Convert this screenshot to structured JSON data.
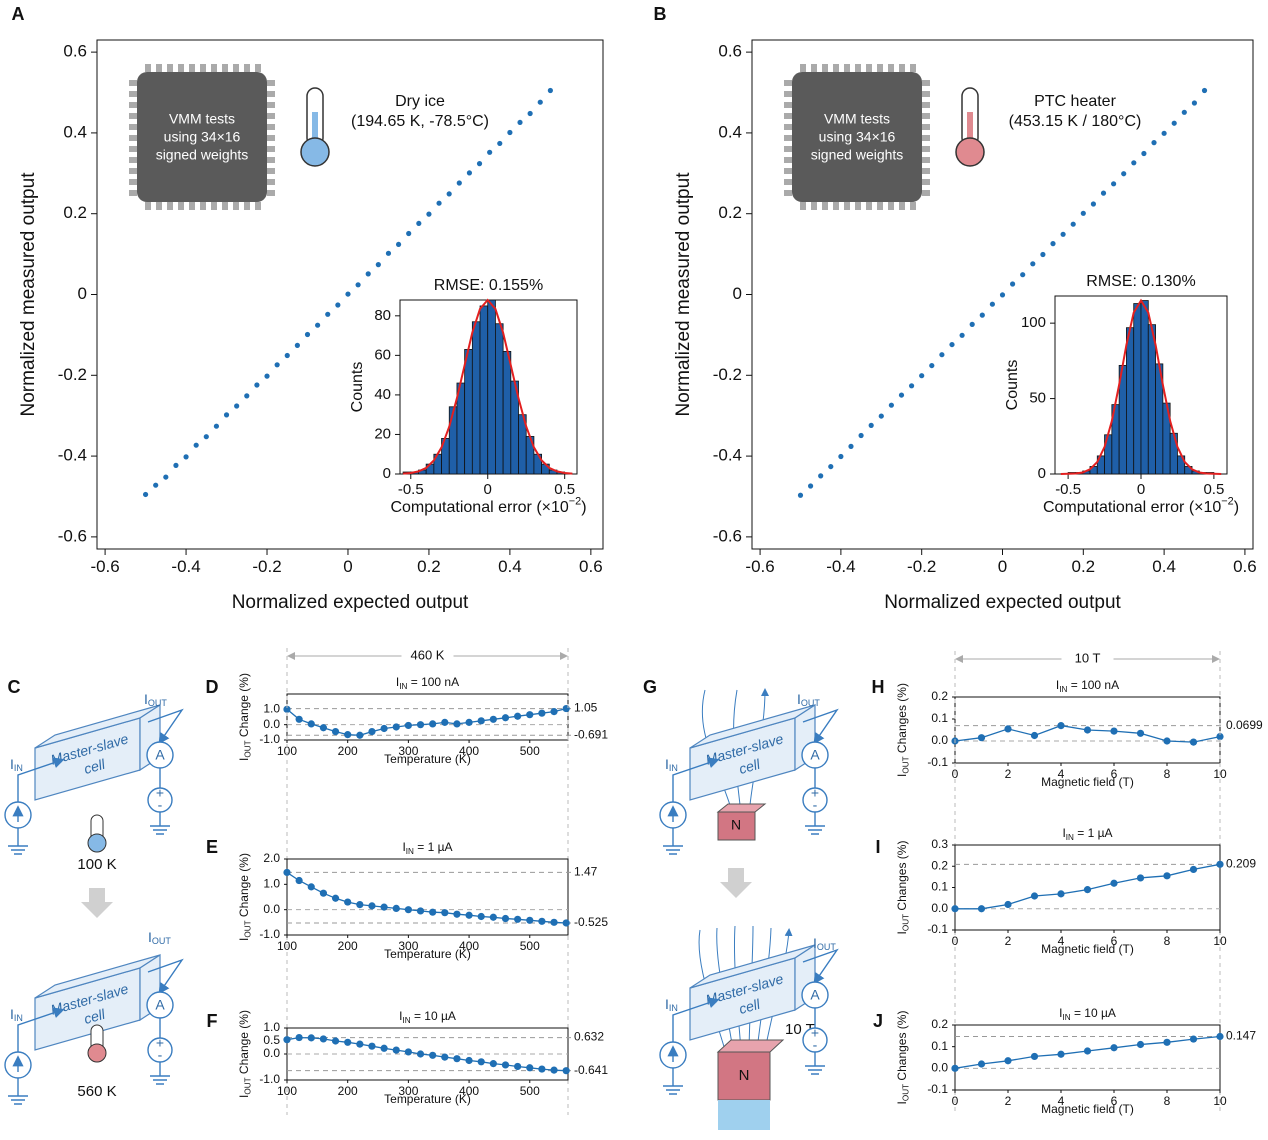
{
  "panel_labels": [
    "A",
    "B",
    "C",
    "D",
    "E",
    "F",
    "G",
    "H",
    "I",
    "J"
  ],
  "diagrams": {
    "cell_top": "Master-slave",
    "cell_bottom": "cell",
    "current_in": {
      "main": "I",
      "sub": "IN"
    },
    "current_out": {
      "main": "I",
      "sub": "OUT"
    },
    "meter": "A",
    "plus": "+",
    "minus": "-",
    "magnet": "N",
    "temps": [
      "100 K",
      "560 K"
    ],
    "field": "10 T"
  },
  "chart_data": [
    {
      "type": "scatter",
      "xlabel": "Normalized expected output",
      "ylabel": "Normalized measured output",
      "color": "#1f6fb4",
      "annotations": {
        "chip": [
          "VMM tests",
          "using 34×16",
          "signed weights"
        ],
        "condition": [
          "Dry ice",
          "(194.65 K, -78.5°C)"
        ],
        "icon_color": "#86b9e6"
      },
      "x": [
        -0.5,
        -0.475,
        -0.45,
        -0.425,
        -0.4,
        -0.375,
        -0.35,
        -0.325,
        -0.3,
        -0.275,
        -0.25,
        -0.225,
        -0.2,
        -0.175,
        -0.15,
        -0.125,
        -0.1,
        -0.075,
        -0.05,
        -0.025,
        0,
        0.025,
        0.05,
        0.075,
        0.1,
        0.125,
        0.15,
        0.175,
        0.2,
        0.225,
        0.25,
        0.275,
        0.3,
        0.325,
        0.35,
        0.375,
        0.4,
        0.425,
        0.45,
        0.475,
        0.5
      ],
      "values": [
        -0.495,
        -0.472,
        -0.452,
        -0.423,
        -0.402,
        -0.373,
        -0.352,
        -0.326,
        -0.298,
        -0.276,
        -0.251,
        -0.224,
        -0.202,
        -0.174,
        -0.151,
        -0.126,
        -0.099,
        -0.076,
        -0.049,
        -0.026,
        0.001,
        0.024,
        0.051,
        0.074,
        0.102,
        0.124,
        0.151,
        0.176,
        0.199,
        0.226,
        0.249,
        0.276,
        0.301,
        0.324,
        0.352,
        0.374,
        0.401,
        0.426,
        0.448,
        0.476,
        0.505
      ],
      "xlim": [
        -0.62,
        0.63
      ],
      "ylim": [
        -0.63,
        0.63
      ],
      "xticks": [
        -0.6,
        -0.4,
        -0.2,
        0,
        0.2,
        0.4,
        0.6
      ],
      "yticks": [
        -0.6,
        -0.4,
        -0.2,
        0,
        0.2,
        0.4,
        0.6
      ]
    },
    {
      "type": "histogram",
      "title": "RMSE: 0.155%",
      "xlabel": {
        "main": "Computational error (×10",
        "sup": "−2",
        "tail": ")"
      },
      "ylabel": "Counts",
      "color": "#1f5fa8",
      "edgecolor": "#111111",
      "bins": [
        -0.55,
        -0.5,
        -0.45,
        -0.4,
        -0.35,
        -0.3,
        -0.25,
        -0.2,
        -0.15,
        -0.1,
        -0.05,
        0,
        0.05,
        0.1,
        0.15,
        0.2,
        0.25,
        0.3,
        0.35,
        0.4,
        0.45,
        0.5
      ],
      "counts": [
        1,
        1,
        2,
        5,
        10,
        18,
        34,
        46,
        63,
        77,
        85,
        88,
        76,
        62,
        47,
        30,
        19,
        10,
        5,
        2,
        1
      ],
      "fit": {
        "color": "#e32020",
        "x": [
          -0.55,
          -0.5,
          -0.45,
          -0.4,
          -0.35,
          -0.3,
          -0.25,
          -0.2,
          -0.15,
          -0.1,
          -0.05,
          0,
          0.05,
          0.1,
          0.15,
          0.2,
          0.25,
          0.3,
          0.35,
          0.4,
          0.45,
          0.5,
          0.55
        ],
        "values": [
          0.2,
          0.5,
          1.3,
          3.1,
          6.9,
          13.5,
          24,
          38.3,
          55,
          71.5,
          83.5,
          88,
          83.5,
          71.5,
          55,
          38.3,
          24,
          13.5,
          6.9,
          3.1,
          1.3,
          0.5,
          0.2
        ]
      },
      "xlim": [
        -0.57,
        0.58
      ],
      "ylim": [
        0,
        88
      ],
      "xticks": [
        -0.5,
        0,
        0.5
      ],
      "yticks": [
        0,
        20,
        40,
        60,
        80
      ]
    },
    {
      "type": "scatter",
      "xlabel": "Normalized expected output",
      "ylabel": "Normalized measured output",
      "color": "#1f6fb4",
      "annotations": {
        "chip": [
          "VMM tests",
          "using 34×16",
          "signed weights"
        ],
        "condition": [
          "PTC heater",
          "(453.15 K / 180°C)"
        ],
        "icon_color": "#e08a90"
      },
      "x": [
        -0.5,
        -0.475,
        -0.45,
        -0.425,
        -0.4,
        -0.375,
        -0.35,
        -0.325,
        -0.3,
        -0.275,
        -0.25,
        -0.225,
        -0.2,
        -0.175,
        -0.15,
        -0.125,
        -0.1,
        -0.075,
        -0.05,
        -0.025,
        0,
        0.025,
        0.05,
        0.075,
        0.1,
        0.125,
        0.15,
        0.175,
        0.2,
        0.225,
        0.25,
        0.275,
        0.3,
        0.325,
        0.35,
        0.375,
        0.4,
        0.425,
        0.45,
        0.475,
        0.5
      ],
      "values": [
        -0.497,
        -0.474,
        -0.449,
        -0.426,
        -0.401,
        -0.376,
        -0.349,
        -0.324,
        -0.301,
        -0.274,
        -0.249,
        -0.226,
        -0.201,
        -0.176,
        -0.149,
        -0.124,
        -0.101,
        -0.074,
        -0.051,
        -0.024,
        -0.001,
        0.026,
        0.049,
        0.076,
        0.099,
        0.126,
        0.149,
        0.174,
        0.201,
        0.224,
        0.251,
        0.274,
        0.299,
        0.326,
        0.349,
        0.376,
        0.399,
        0.424,
        0.451,
        0.474,
        0.505
      ],
      "xlim": [
        -0.62,
        0.62
      ],
      "ylim": [
        -0.63,
        0.63
      ],
      "xticks": [
        -0.6,
        -0.4,
        -0.2,
        0,
        0.2,
        0.4,
        0.6
      ],
      "yticks": [
        -0.6,
        -0.4,
        -0.2,
        0,
        0.2,
        0.4,
        0.6
      ]
    },
    {
      "type": "histogram",
      "title": "RMSE: 0.130%",
      "xlabel": {
        "main": "Computational error (×10",
        "sup": "−2",
        "tail": ")"
      },
      "ylabel": "Counts",
      "color": "#1f5fa8",
      "edgecolor": "#111111",
      "bins": [
        -0.55,
        -0.5,
        -0.45,
        -0.4,
        -0.35,
        -0.3,
        -0.25,
        -0.2,
        -0.15,
        -0.1,
        -0.05,
        0,
        0.05,
        0.1,
        0.15,
        0.2,
        0.25,
        0.3,
        0.35,
        0.4,
        0.45,
        0.5,
        0.55
      ],
      "counts": [
        0,
        1,
        1,
        2,
        5,
        12,
        26,
        46,
        72,
        97,
        113,
        115,
        99,
        73,
        47,
        27,
        12,
        5,
        2,
        1,
        1,
        0
      ],
      "fit": {
        "color": "#e32020",
        "x": [
          -0.55,
          -0.5,
          -0.45,
          -0.4,
          -0.35,
          -0.3,
          -0.25,
          -0.2,
          -0.15,
          -0.1,
          -0.05,
          0,
          0.05,
          0.1,
          0.15,
          0.2,
          0.25,
          0.3,
          0.35,
          0.4,
          0.45,
          0.5,
          0.55
        ],
        "values": [
          0,
          0.1,
          0.3,
          1.0,
          3.1,
          8,
          18,
          35,
          59,
          85.5,
          107,
          115,
          107,
          85.5,
          59,
          35,
          18,
          8,
          3.1,
          1.0,
          0.3,
          0.1,
          0
        ]
      },
      "xlim": [
        -0.59,
        0.59
      ],
      "ylim": [
        0,
        118
      ],
      "xticks": [
        -0.5,
        0,
        0.5
      ],
      "yticks": [
        0,
        50,
        100
      ]
    },
    {
      "type": "line",
      "title": {
        "main": "I",
        "sub": "IN",
        "tail": " = 100 nA"
      },
      "xlabel": "Temperature (K)",
      "ylabel": {
        "main": "I",
        "sub": "OUT",
        "tail": " Change (%)"
      },
      "span_label": "460 K",
      "color": "#1f6fb4",
      "zero_line": true,
      "x": [
        100,
        120,
        140,
        160,
        180,
        200,
        220,
        240,
        260,
        280,
        300,
        320,
        340,
        360,
        380,
        400,
        420,
        440,
        460,
        480,
        500,
        520,
        540,
        560
      ],
      "values": [
        1.0,
        0.35,
        0.05,
        -0.2,
        -0.45,
        -0.65,
        -0.691,
        -0.45,
        -0.25,
        -0.15,
        -0.05,
        0.0,
        0.05,
        0.15,
        0.05,
        0.15,
        0.25,
        0.35,
        0.45,
        0.55,
        0.65,
        0.75,
        0.85,
        1.05
      ],
      "ref_lines": [
        1.05,
        -0.691
      ],
      "xlim": [
        100,
        563
      ],
      "ylim": [
        -1.0,
        2.0
      ],
      "xticks": [
        100,
        200,
        300,
        400,
        500
      ],
      "yticks": [
        {
          "value": -1,
          "label": "-1.0"
        },
        {
          "value": 0,
          "label": "0.0"
        },
        {
          "value": 1,
          "label": "1.0"
        }
      ]
    },
    {
      "type": "line",
      "title": {
        "main": "I",
        "sub": "IN",
        "tail": " = 1 µA"
      },
      "xlabel": "Temperature (K)",
      "ylabel": {
        "main": "I",
        "sub": "OUT",
        "tail": " Change (%)"
      },
      "color": "#1f6fb4",
      "zero_line": true,
      "x": [
        100,
        120,
        140,
        160,
        180,
        200,
        220,
        240,
        260,
        280,
        300,
        320,
        340,
        360,
        380,
        400,
        420,
        440,
        460,
        480,
        500,
        520,
        540,
        560
      ],
      "values": [
        1.47,
        1.15,
        0.9,
        0.65,
        0.45,
        0.3,
        0.2,
        0.15,
        0.1,
        0.05,
        0.0,
        -0.05,
        -0.1,
        -0.12,
        -0.18,
        -0.22,
        -0.27,
        -0.3,
        -0.35,
        -0.38,
        -0.42,
        -0.46,
        -0.5,
        -0.525
      ],
      "ref_lines": [
        1.47,
        -0.525
      ],
      "xlim": [
        100,
        563
      ],
      "ylim": [
        -1.0,
        2.0
      ],
      "xticks": [
        100,
        200,
        300,
        400,
        500
      ],
      "yticks": [
        {
          "value": -1,
          "label": "-1.0"
        },
        {
          "value": 0,
          "label": "0.0"
        },
        {
          "value": 1,
          "label": "1.0"
        },
        {
          "value": 2,
          "label": "2.0"
        }
      ]
    },
    {
      "type": "line",
      "title": {
        "main": "I",
        "sub": "IN",
        "tail": " = 10 µA"
      },
      "xlabel": "Temperature (K)",
      "ylabel": {
        "main": "I",
        "sub": "OUT",
        "tail": " Change (%)"
      },
      "color": "#1f6fb4",
      "zero_line": true,
      "x": [
        100,
        120,
        140,
        160,
        180,
        200,
        220,
        240,
        260,
        280,
        300,
        320,
        340,
        360,
        380,
        400,
        420,
        440,
        460,
        480,
        500,
        520,
        540,
        560
      ],
      "values": [
        0.55,
        0.632,
        0.62,
        0.58,
        0.5,
        0.45,
        0.38,
        0.3,
        0.22,
        0.15,
        0.08,
        0.0,
        -0.05,
        -0.12,
        -0.18,
        -0.25,
        -0.3,
        -0.37,
        -0.42,
        -0.48,
        -0.53,
        -0.58,
        -0.62,
        -0.641
      ],
      "ref_lines": [
        0.632,
        -0.641
      ],
      "xlim": [
        100,
        563
      ],
      "ylim": [
        -1.0,
        1.0
      ],
      "xticks": [
        100,
        200,
        300,
        400,
        500
      ],
      "yticks": [
        {
          "value": -1,
          "label": "-1.0"
        },
        {
          "value": 0,
          "label": "0.0"
        },
        0.5,
        {
          "value": 1,
          "label": "1.0"
        }
      ]
    },
    {
      "type": "line",
      "title": {
        "main": "I",
        "sub": "IN",
        "tail": " = 100 nA"
      },
      "xlabel": "Magnetic field (T)",
      "ylabel": {
        "main": "I",
        "sub": "OUT",
        "tail": " Changes (%)"
      },
      "span_label": "10 T",
      "color": "#1f6fb4",
      "zero_line": true,
      "x": [
        0,
        1,
        2,
        3,
        4,
        5,
        6,
        7,
        8,
        9,
        10
      ],
      "values": [
        0.0,
        0.015,
        0.055,
        0.025,
        0.0699,
        0.05,
        0.045,
        0.035,
        0.0,
        -0.005,
        0.02
      ],
      "ref_lines": [
        0.0699
      ],
      "xlim": [
        0,
        10
      ],
      "ylim": [
        -0.1,
        0.2
      ],
      "xticks": [
        0,
        2,
        4,
        6,
        8,
        10
      ],
      "yticks": [
        -0.1,
        {
          "value": 0,
          "label": "0.0"
        },
        0.1,
        0.2
      ]
    },
    {
      "type": "line",
      "title": {
        "main": "I",
        "sub": "IN",
        "tail": " = 1 µA"
      },
      "xlabel": "Magnetic field (T)",
      "ylabel": {
        "main": "I",
        "sub": "OUT",
        "tail": " Changes (%)"
      },
      "color": "#1f6fb4",
      "zero_line": true,
      "x": [
        0,
        1,
        2,
        3,
        4,
        5,
        6,
        7,
        8,
        9,
        10
      ],
      "values": [
        0.0,
        0.0,
        0.02,
        0.06,
        0.07,
        0.09,
        0.12,
        0.145,
        0.155,
        0.185,
        0.209
      ],
      "ref_lines": [
        0.209
      ],
      "xlim": [
        0,
        10
      ],
      "ylim": [
        -0.1,
        0.3
      ],
      "xticks": [
        0,
        2,
        4,
        6,
        8,
        10
      ],
      "yticks": [
        -0.1,
        {
          "value": 0,
          "label": "0.0"
        },
        0.1,
        0.2,
        0.3
      ]
    },
    {
      "type": "line",
      "title": {
        "main": "I",
        "sub": "IN",
        "tail": " = 10 µA"
      },
      "xlabel": "Magnetic field (T)",
      "ylabel": {
        "main": "I",
        "sub": "OUT",
        "tail": " Changes (%)"
      },
      "color": "#1f6fb4",
      "zero_line": true,
      "x": [
        0,
        1,
        2,
        3,
        4,
        5,
        6,
        7,
        8,
        9,
        10
      ],
      "values": [
        0.0,
        0.02,
        0.035,
        0.055,
        0.065,
        0.08,
        0.095,
        0.11,
        0.12,
        0.135,
        0.147
      ],
      "ref_lines": [
        0.147
      ],
      "xlim": [
        0,
        10
      ],
      "ylim": [
        -0.1,
        0.2
      ],
      "xticks": [
        0,
        2,
        4,
        6,
        8,
        10
      ],
      "yticks": [
        -0.1,
        {
          "value": 0,
          "label": "0.0"
        },
        0.1,
        0.2
      ]
    }
  ]
}
